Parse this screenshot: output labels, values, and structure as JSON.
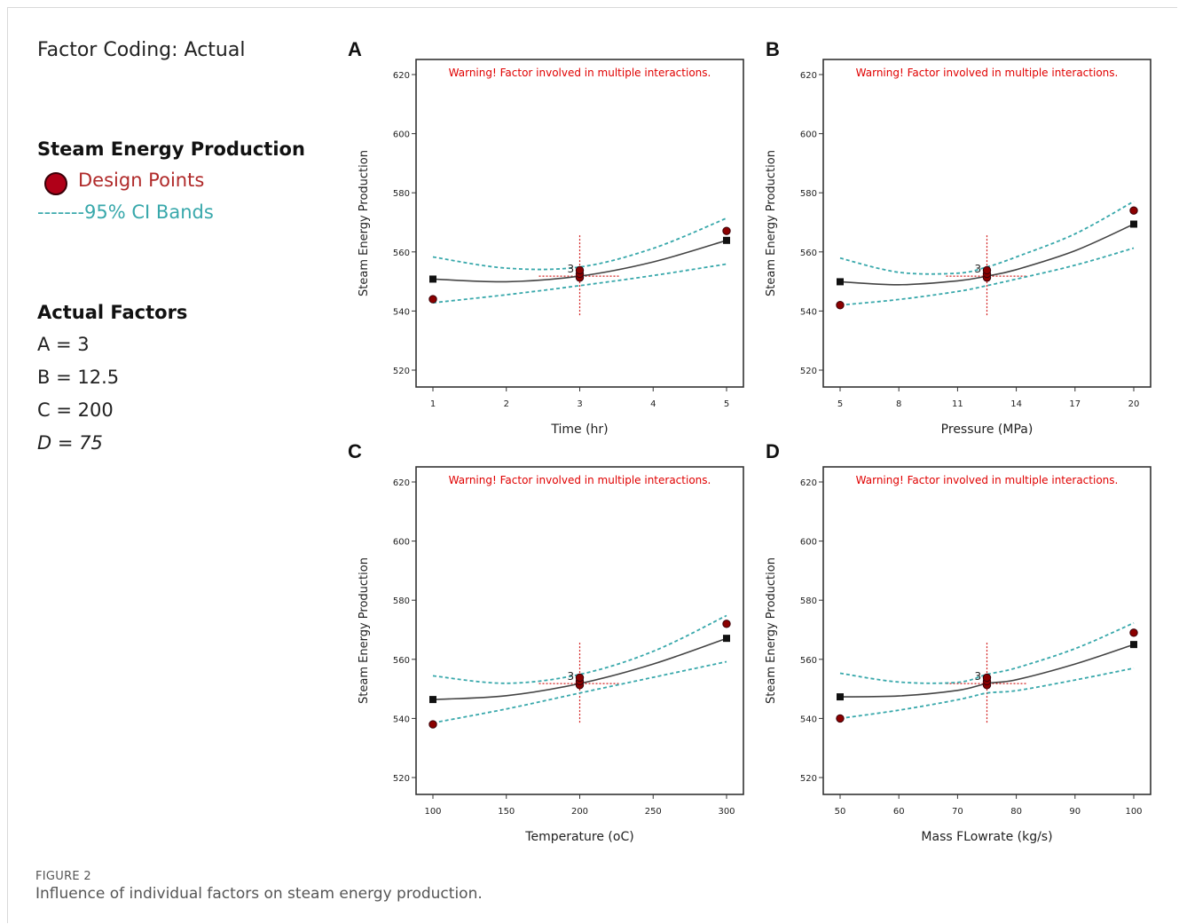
{
  "legend": {
    "factor_coding": "Factor Coding: Actual",
    "response_title": "Steam Energy Production",
    "design_points_label": "Design Points",
    "ci_label": "-------95% CI Bands",
    "actual_factors_title": "Actual Factors",
    "factors": [
      "A = 3",
      "B = 12.5",
      "C = 200",
      "D = 75"
    ]
  },
  "caption": {
    "figure_label": "FIGURE 2",
    "text": "Influence of individual factors on steam energy production."
  },
  "colors": {
    "design_point": "#8b0000",
    "ci_band": "#38a8ab",
    "fit_line": "#444444",
    "warning": "#e00000",
    "crosshair": "#d22020"
  },
  "chart_data": [
    {
      "type": "line",
      "panel": "A",
      "warning": "Warning! Factor involved in multiple interactions.",
      "xlabel": "Time (hr)",
      "ylabel": "Steam Energy Production",
      "xlim": [
        1,
        5
      ],
      "ylim": [
        520,
        620
      ],
      "xticks": [
        1,
        2,
        3,
        4,
        5
      ],
      "yticks": [
        520,
        540,
        560,
        580,
        600,
        620
      ],
      "fit": {
        "x": [
          1,
          2,
          3,
          4,
          5
        ],
        "y": [
          550.8,
          549.9,
          551.8,
          556.6,
          563.9
        ]
      },
      "ci_upper": {
        "x": [
          1,
          2,
          3,
          4,
          5
        ],
        "y": [
          558.3,
          554.5,
          554.9,
          561.2,
          571.4
        ]
      },
      "ci_lower": {
        "x": [
          1,
          2,
          3,
          4,
          5
        ],
        "y": [
          542.8,
          545.5,
          548.6,
          552.0,
          555.9
        ]
      },
      "design_points": {
        "x": [
          1,
          3,
          3,
          3,
          5
        ],
        "y": [
          544.0,
          551.3,
          552.6,
          553.8,
          567.1
        ]
      },
      "center_label": "3",
      "center": {
        "x": 3,
        "y": 551.8
      }
    },
    {
      "type": "line",
      "panel": "B",
      "warning": "Warning! Factor involved in multiple interactions.",
      "xlabel": "Pressure (MPa)",
      "ylabel": "Steam Energy Production",
      "xlim": [
        5,
        20
      ],
      "ylim": [
        520,
        620
      ],
      "xticks": [
        5,
        8,
        11,
        14,
        17,
        20
      ],
      "yticks": [
        520,
        540,
        560,
        580,
        600,
        620
      ],
      "fit": {
        "x": [
          5,
          8,
          11,
          12.5,
          14,
          17,
          20
        ],
        "y": [
          549.9,
          548.9,
          550.2,
          551.8,
          554.0,
          560.4,
          569.4
        ]
      },
      "ci_upper": {
        "x": [
          5,
          8,
          11,
          12.5,
          14,
          17,
          20
        ],
        "y": [
          557.9,
          553.1,
          552.8,
          554.9,
          558.3,
          566.1,
          577.1
        ]
      },
      "ci_lower": {
        "x": [
          5,
          8,
          11,
          12.5,
          14,
          17,
          20
        ],
        "y": [
          542.0,
          543.9,
          546.6,
          548.6,
          550.8,
          555.5,
          561.3
        ]
      },
      "design_points": {
        "x": [
          5,
          12.5,
          12.5,
          12.5,
          20
        ],
        "y": [
          542.0,
          551.3,
          552.6,
          553.8,
          574.0
        ]
      },
      "center_label": "3",
      "center": {
        "x": 12.5,
        "y": 551.8
      }
    },
    {
      "type": "line",
      "panel": "C",
      "warning": "Warning! Factor involved in multiple interactions.",
      "xlabel": "Temperature (oC)",
      "ylabel": "Steam Energy Production",
      "xlim": [
        100,
        300
      ],
      "ylim": [
        520,
        620
      ],
      "xticks": [
        100,
        150,
        200,
        250,
        300
      ],
      "yticks": [
        520,
        540,
        560,
        580,
        600,
        620
      ],
      "fit": {
        "x": [
          100,
          150,
          200,
          250,
          300
        ],
        "y": [
          546.4,
          547.7,
          551.8,
          558.4,
          567.1
        ]
      },
      "ci_upper": {
        "x": [
          100,
          150,
          200,
          250,
          300
        ],
        "y": [
          554.4,
          551.9,
          554.9,
          562.7,
          574.8
        ]
      },
      "ci_lower": {
        "x": [
          100,
          150,
          200,
          250,
          300
        ],
        "y": [
          538.5,
          543.2,
          548.6,
          553.9,
          559.2
        ]
      },
      "design_points": {
        "x": [
          100,
          200,
          200,
          200,
          300
        ],
        "y": [
          538.0,
          551.3,
          552.6,
          553.8,
          572.0
        ]
      },
      "center_label": "3",
      "center": {
        "x": 200,
        "y": 551.8
      }
    },
    {
      "type": "line",
      "panel": "D",
      "warning": "Warning! Factor involved in multiple interactions.",
      "xlabel": "Mass FLowrate (kg/s)",
      "ylabel": "Steam Energy Production",
      "xlim": [
        50,
        100
      ],
      "ylim": [
        520,
        620
      ],
      "xticks": [
        50,
        60,
        70,
        80,
        90,
        100
      ],
      "yticks": [
        520,
        540,
        560,
        580,
        600,
        620
      ],
      "fit": {
        "x": [
          50,
          60,
          70,
          75,
          80,
          90,
          100
        ],
        "y": [
          547.3,
          547.6,
          549.5,
          551.8,
          553.1,
          558.4,
          565.0
        ]
      },
      "ci_upper": {
        "x": [
          50,
          60,
          70,
          75,
          80,
          90,
          100
        ],
        "y": [
          555.3,
          552.3,
          552.2,
          554.9,
          557.1,
          563.6,
          572.3
        ]
      },
      "ci_lower": {
        "x": [
          50,
          60,
          70,
          75,
          80,
          90,
          100
        ],
        "y": [
          540.0,
          542.8,
          546.3,
          548.6,
          549.4,
          553.0,
          557.0
        ]
      },
      "design_points": {
        "x": [
          50,
          75,
          75,
          75,
          100
        ],
        "y": [
          540.0,
          551.3,
          552.6,
          553.8,
          569.0
        ]
      },
      "center_label": "3",
      "center": {
        "x": 75,
        "y": 551.8
      }
    }
  ]
}
